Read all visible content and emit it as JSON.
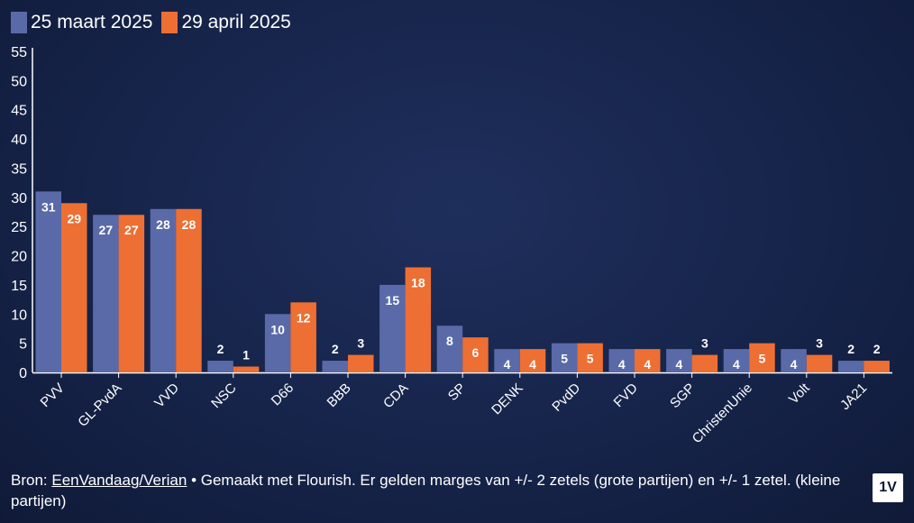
{
  "legend": {
    "items": [
      {
        "label": "25 maart 2025",
        "color": "#5a6aa8"
      },
      {
        "label": "29 april 2025",
        "color": "#ee6f33"
      }
    ]
  },
  "chart_data": {
    "type": "bar",
    "categories": [
      "PVV",
      "GL-PvdA",
      "VVD",
      "NSC",
      "D66",
      "BBB",
      "CDA",
      "SP",
      "DENK",
      "PvdD",
      "FVD",
      "SGP",
      "ChristenUnie",
      "Volt",
      "JA21"
    ],
    "series": [
      {
        "name": "25 maart 2025",
        "color": "#5a6aa8",
        "values": [
          31,
          27,
          28,
          2,
          10,
          2,
          15,
          8,
          4,
          5,
          4,
          4,
          4,
          4,
          2
        ]
      },
      {
        "name": "29 april 2025",
        "color": "#ee6f33",
        "values": [
          29,
          27,
          28,
          1,
          12,
          3,
          18,
          6,
          4,
          5,
          4,
          3,
          5,
          3,
          2
        ]
      }
    ],
    "y_ticks": [
      0,
      5,
      10,
      15,
      20,
      25,
      30,
      35,
      40,
      45,
      50,
      55
    ],
    "ylim": [
      0,
      55
    ],
    "title": "",
    "xlabel": "",
    "ylabel": "",
    "grid": false,
    "legend_position": "top-left"
  },
  "footer": {
    "prefix": "Bron: ",
    "link": "EenVandaag/Verian",
    "suffix": " • Gemaakt met Flourish. Er gelden marges van +/- 2 zetels (grote partijen) en +/- 1 zetel. (kleine partijen)"
  },
  "logo": {
    "text": "1V"
  }
}
